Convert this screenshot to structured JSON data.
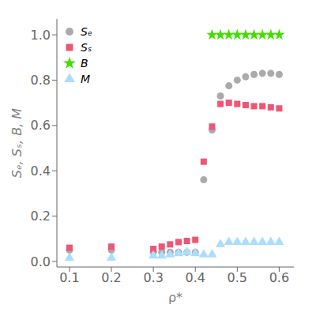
{
  "chart_data": {
    "type": "scatter",
    "xlabel": "ρ*",
    "ylabel": "Sₑ, Sₛ, B, M",
    "xlim": [
      0.07,
      0.635
    ],
    "ylim": [
      -0.025,
      1.07
    ],
    "xticks": [
      0.1,
      0.2,
      0.3,
      0.4,
      0.5,
      0.6
    ],
    "yticks": [
      {
        "value": 0.0,
        "label": "0.0"
      },
      0.2,
      0.4,
      0.6,
      0.8,
      {
        "value": 1.0,
        "label": "1.0"
      }
    ],
    "grid": false,
    "legend": "upper left",
    "series": [
      {
        "name": "Sₑ",
        "color": "#aaaaaa",
        "marker": "circle",
        "x": [
          0.1,
          0.2,
          0.3,
          0.32,
          0.34,
          0.36,
          0.38,
          0.4,
          0.42,
          0.44,
          0.46,
          0.48,
          0.5,
          0.52,
          0.54,
          0.56,
          0.58,
          0.6
        ],
        "values": [
          0.05,
          0.05,
          0.04,
          0.04,
          0.04,
          0.04,
          0.04,
          0.04,
          0.36,
          0.58,
          0.73,
          0.775,
          0.8,
          0.815,
          0.825,
          0.83,
          0.83,
          0.825
        ]
      },
      {
        "name": "Sₛ",
        "color": "#ee5577",
        "marker": "square",
        "x": [
          0.1,
          0.2,
          0.3,
          0.32,
          0.34,
          0.36,
          0.38,
          0.4,
          0.42,
          0.44,
          0.46,
          0.48,
          0.5,
          0.52,
          0.54,
          0.56,
          0.58,
          0.6
        ],
        "values": [
          0.06,
          0.065,
          0.055,
          0.065,
          0.075,
          0.085,
          0.09,
          0.095,
          0.44,
          0.595,
          0.695,
          0.7,
          0.695,
          0.69,
          0.685,
          0.685,
          0.68,
          0.675
        ]
      },
      {
        "name": "B",
        "color": "#44dd00",
        "marker": "star",
        "x": [
          0.44,
          0.46,
          0.48,
          0.5,
          0.52,
          0.54,
          0.56,
          0.58,
          0.6
        ],
        "values": [
          1.0,
          1.0,
          1.0,
          1.0,
          1.0,
          1.0,
          1.0,
          1.0,
          1.0
        ]
      },
      {
        "name": "M",
        "color": "#aaddff",
        "marker": "triangle",
        "x": [
          0.1,
          0.2,
          0.3,
          0.32,
          0.34,
          0.36,
          0.38,
          0.4,
          0.42,
          0.44,
          0.46,
          0.48,
          0.5,
          0.52,
          0.54,
          0.56,
          0.58,
          0.6
        ],
        "values": [
          0.015,
          0.015,
          0.025,
          0.025,
          0.03,
          0.035,
          0.04,
          0.035,
          0.03,
          0.03,
          0.075,
          0.085,
          0.085,
          0.085,
          0.085,
          0.085,
          0.085,
          0.085
        ]
      }
    ]
  }
}
